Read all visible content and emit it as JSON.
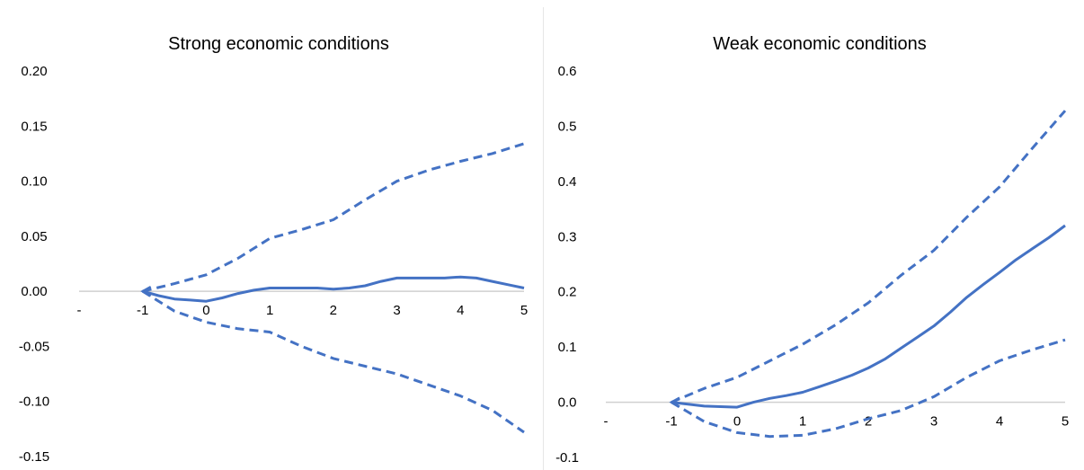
{
  "chart_data": [
    {
      "type": "line",
      "title": "Strong economic conditions",
      "xlabel": "",
      "ylabel": "",
      "x_tick_labels": [
        "-",
        "-1",
        "0",
        "1",
        "2",
        "3",
        "4",
        "5"
      ],
      "x_tick_values": [
        -2,
        -1,
        0,
        1,
        2,
        3,
        4,
        5
      ],
      "y_tick_labels": [
        "0.20",
        "0.15",
        "0.10",
        "0.05",
        "0.00",
        "-0.05",
        "-0.10",
        "-0.15"
      ],
      "y_tick_values": [
        0.2,
        0.15,
        0.1,
        0.05,
        0.0,
        -0.05,
        -0.1,
        -0.15
      ],
      "xlim": [
        -2,
        5
      ],
      "ylim": [
        -0.15,
        0.2
      ],
      "grid": false,
      "series": [
        {
          "style": "solid",
          "color": "#4472C4",
          "x": [
            -1,
            -0.75,
            -0.5,
            -0.25,
            0,
            0.25,
            0.5,
            0.75,
            1,
            1.25,
            1.5,
            1.75,
            2,
            2.25,
            2.5,
            2.75,
            3,
            3.25,
            3.5,
            3.75,
            4,
            4.25,
            4.5,
            4.75,
            5
          ],
          "y": [
            0.0,
            -0.004,
            -0.007,
            -0.008,
            -0.009,
            -0.006,
            -0.002,
            0.001,
            0.003,
            0.003,
            0.003,
            0.003,
            0.002,
            0.003,
            0.005,
            0.009,
            0.012,
            0.012,
            0.012,
            0.012,
            0.013,
            0.012,
            0.009,
            0.006,
            0.003
          ]
        },
        {
          "style": "dashed",
          "color": "#4472C4",
          "x": [
            -1,
            -0.5,
            0,
            0.5,
            1,
            1.5,
            2,
            2.5,
            3,
            3.5,
            4,
            4.5,
            5
          ],
          "y": [
            0.0,
            0.007,
            0.015,
            0.03,
            0.048,
            0.056,
            0.065,
            0.083,
            0.1,
            0.11,
            0.118,
            0.125,
            0.134
          ]
        },
        {
          "style": "dashed",
          "color": "#4472C4",
          "x": [
            -1,
            -0.5,
            0,
            0.5,
            1,
            1.5,
            2,
            2.5,
            3,
            3.5,
            4,
            4.5,
            5
          ],
          "y": [
            0.0,
            -0.018,
            -0.028,
            -0.034,
            -0.037,
            -0.05,
            -0.061,
            -0.068,
            -0.075,
            -0.085,
            -0.095,
            -0.108,
            -0.128
          ]
        }
      ]
    },
    {
      "type": "line",
      "title": "Weak economic conditions",
      "xlabel": "",
      "ylabel": "",
      "x_tick_labels": [
        "-",
        "-1",
        "0",
        "1",
        "2",
        "3",
        "4",
        "5"
      ],
      "x_tick_values": [
        -2,
        -1,
        0,
        1,
        2,
        3,
        4,
        5
      ],
      "y_tick_labels": [
        "0.6",
        "0.5",
        "0.4",
        "0.3",
        "0.2",
        "0.1",
        "0.0",
        "-0.1"
      ],
      "y_tick_values": [
        0.6,
        0.5,
        0.4,
        0.3,
        0.2,
        0.1,
        0.0,
        -0.1
      ],
      "xlim": [
        -2,
        5
      ],
      "ylim": [
        -0.1,
        0.6
      ],
      "grid": false,
      "series": [
        {
          "style": "solid",
          "color": "#4472C4",
          "x": [
            -1,
            -0.5,
            0,
            0.25,
            0.5,
            0.75,
            1,
            1.25,
            1.5,
            1.75,
            2,
            2.25,
            2.5,
            2.75,
            3,
            3.25,
            3.5,
            3.75,
            4,
            4.25,
            4.5,
            4.75,
            5
          ],
          "y": [
            0.0,
            -0.007,
            -0.009,
            0.0,
            0.007,
            0.012,
            0.018,
            0.028,
            0.038,
            0.049,
            0.062,
            0.078,
            0.098,
            0.118,
            0.138,
            0.163,
            0.19,
            0.213,
            0.235,
            0.258,
            0.278,
            0.298,
            0.32
          ]
        },
        {
          "style": "dashed",
          "color": "#4472C4",
          "x": [
            -1,
            -0.5,
            0,
            0.5,
            1,
            1.5,
            2,
            2.5,
            3,
            3.5,
            4,
            4.5,
            5
          ],
          "y": [
            0.0,
            0.025,
            0.045,
            0.075,
            0.105,
            0.14,
            0.18,
            0.23,
            0.275,
            0.335,
            0.39,
            0.46,
            0.528
          ]
        },
        {
          "style": "dashed",
          "color": "#4472C4",
          "x": [
            -1,
            -0.5,
            0,
            0.5,
            1,
            1.5,
            2,
            2.5,
            3,
            3.5,
            4,
            4.5,
            5
          ],
          "y": [
            0.0,
            -0.035,
            -0.055,
            -0.062,
            -0.06,
            -0.048,
            -0.03,
            -0.015,
            0.01,
            0.045,
            0.075,
            0.095,
            0.113
          ]
        }
      ]
    }
  ]
}
